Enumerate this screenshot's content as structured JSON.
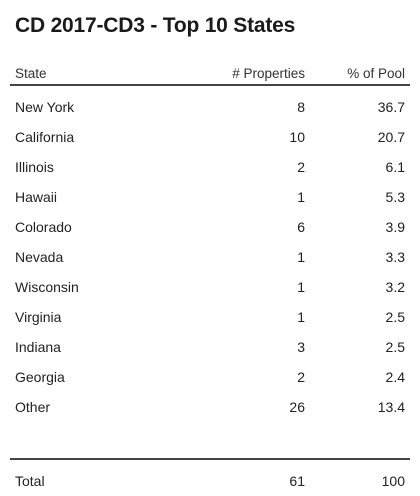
{
  "title": "CD 2017-CD3 - Top 10 States",
  "headers": {
    "state": "State",
    "properties": "# Properties",
    "pool": "% of Pool"
  },
  "rows": [
    {
      "state": "New York",
      "properties": "8",
      "pool": "36.7"
    },
    {
      "state": "California",
      "properties": "10",
      "pool": "20.7"
    },
    {
      "state": "Illinois",
      "properties": "2",
      "pool": "6.1"
    },
    {
      "state": "Hawaii",
      "properties": "1",
      "pool": "5.3"
    },
    {
      "state": "Colorado",
      "properties": "6",
      "pool": "3.9"
    },
    {
      "state": "Nevada",
      "properties": "1",
      "pool": "3.3"
    },
    {
      "state": "Wisconsin",
      "properties": "1",
      "pool": "3.2"
    },
    {
      "state": "Virginia",
      "properties": "1",
      "pool": "2.5"
    },
    {
      "state": "Indiana",
      "properties": "3",
      "pool": "2.5"
    },
    {
      "state": "Georgia",
      "properties": "2",
      "pool": "2.4"
    },
    {
      "state": "Other",
      "properties": "26",
      "pool": "13.4"
    }
  ],
  "total": {
    "label": "Total",
    "properties": "61",
    "pool": "100"
  }
}
